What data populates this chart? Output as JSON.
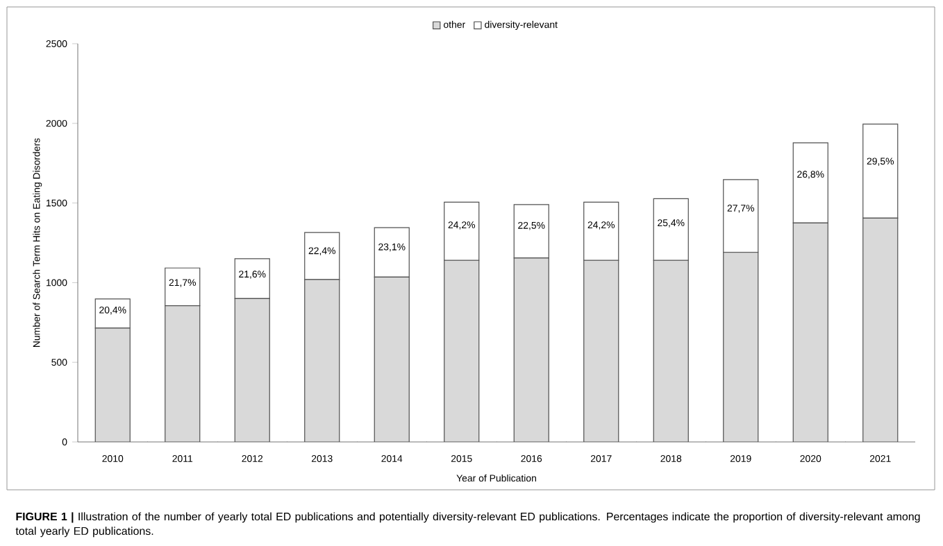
{
  "chart_data": {
    "type": "bar",
    "stacked": true,
    "xlabel": "Year of Publication",
    "ylabel": "Number of Search Term Hits on Eating Disorders",
    "categories": [
      "2010",
      "2011",
      "2012",
      "2013",
      "2014",
      "2015",
      "2016",
      "2017",
      "2018",
      "2019",
      "2020",
      "2021"
    ],
    "series": [
      {
        "name": "other",
        "color": "#d9d9d9",
        "values": [
          715,
          855,
          900,
          1020,
          1035,
          1140,
          1155,
          1140,
          1140,
          1190,
          1375,
          1405
        ]
      },
      {
        "name": "diversity-relevant",
        "color": "#ffffff",
        "values": [
          183,
          237,
          250,
          295,
          310,
          365,
          335,
          365,
          387,
          457,
          503,
          590
        ]
      }
    ],
    "ylim": [
      0,
      2500
    ],
    "yticks": [
      0,
      500,
      1000,
      1500,
      2000,
      2500
    ],
    "legend": "top",
    "grid": false,
    "annotations": [
      "20,4%",
      "21,7%",
      "21,6%",
      "22,4%",
      "23,1%",
      "24,2%",
      "22,5%",
      "24,2%",
      "25,4%",
      "27,7%",
      "26,8%",
      "29,5%",
      "**FIGURE 1 |** Illustration of the number of yearly total ED publications and potentially diversity-relevant ED publications. Percentages indicate the proportion of diversity-relevant among total yearly ED publications."
    ]
  }
}
